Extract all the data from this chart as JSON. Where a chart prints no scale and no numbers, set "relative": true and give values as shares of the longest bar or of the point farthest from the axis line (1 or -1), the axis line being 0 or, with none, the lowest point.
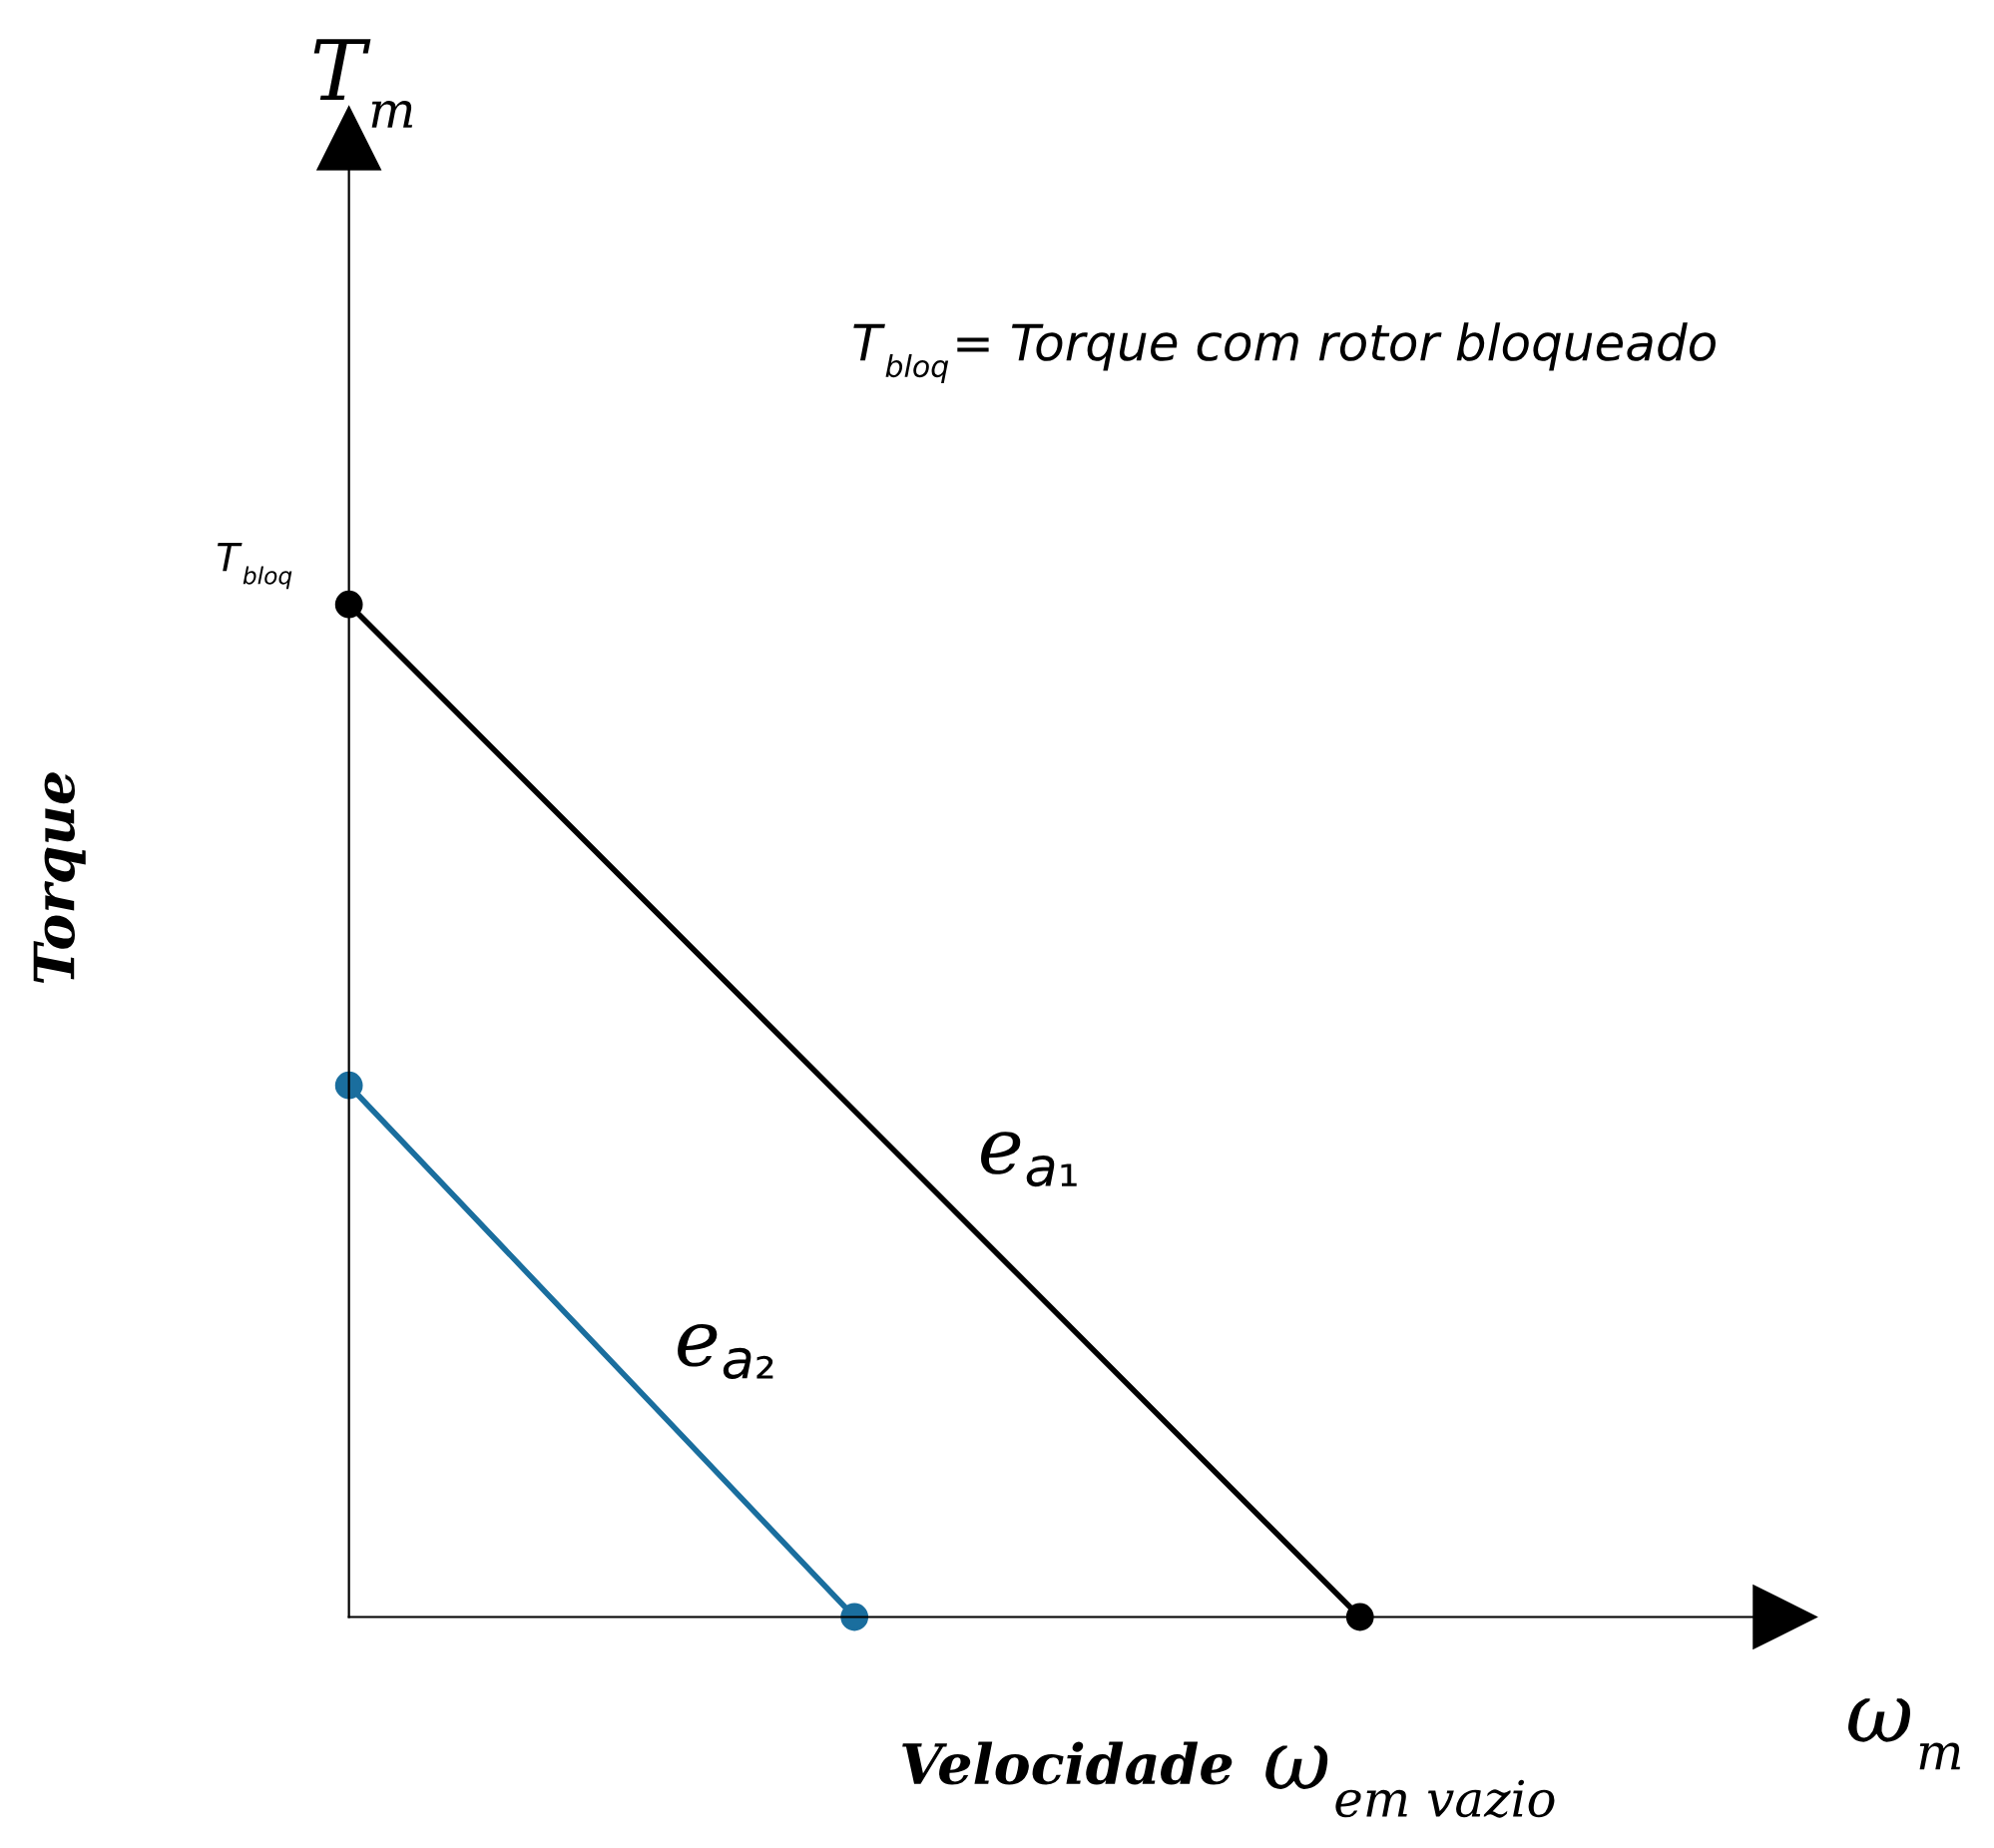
{
  "chart_data": {
    "type": "line",
    "relative": true,
    "xlabel": "Velocidade",
    "ylabel": "Torque",
    "categories": [
      null,
      null,
      null
    ],
    "series": [
      {
        "name": "e$_{a₁}$",
        "color": "#000000",
        "values": [
          1,
          0.5,
          0
        ]
      },
      {
        "name": "e$_{a₂}$",
        "color": "#1a6e9e",
        "values": [
          0.525,
          0,
          null
        ]
      }
    ],
    "marker": "circle",
    "line_style": "solid",
    "legend": false,
    "annotations": [
      "T$_{m}$",
      "ω$_{m}$",
      "T$_{bloq}$= Torque com rotor bloqueado",
      "T$_{bloq}$",
      "ω$_{em vazio}$"
    ]
  }
}
